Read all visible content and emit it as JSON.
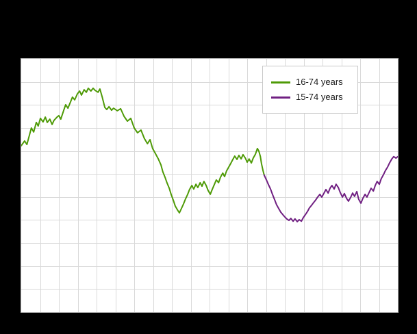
{
  "window": {
    "background": "#000000"
  },
  "chart_data": {
    "type": "line",
    "title": "",
    "plot_background": "#ffffff",
    "grid": {
      "visible": true,
      "columns": 20,
      "rows": 11,
      "color": "#d9d9d9",
      "border_color": "#b4b4b4"
    },
    "x_axis": {
      "tick_labels_visible": false
    },
    "y_axis": {
      "tick_labels_visible": false
    },
    "note": "No axis tick labels are visible in the image; point coordinates are normalized to the plot area (x: 0-1 left to right, y: 0-1 bottom to top).",
    "legend": {
      "position": "top-right",
      "items": [
        {
          "label": "16-74 years",
          "color": "#4e9a06"
        },
        {
          "label": "15-74 years",
          "color": "#702082"
        }
      ]
    },
    "series": [
      {
        "name": "16-74 years",
        "color": "#4e9a06",
        "points": [
          [
            0.0,
            0.657
          ],
          [
            0.009,
            0.676
          ],
          [
            0.015,
            0.662
          ],
          [
            0.022,
            0.7
          ],
          [
            0.027,
            0.727
          ],
          [
            0.033,
            0.711
          ],
          [
            0.04,
            0.749
          ],
          [
            0.045,
            0.735
          ],
          [
            0.051,
            0.765
          ],
          [
            0.058,
            0.751
          ],
          [
            0.064,
            0.77
          ],
          [
            0.069,
            0.749
          ],
          [
            0.076,
            0.762
          ],
          [
            0.082,
            0.741
          ],
          [
            0.087,
            0.757
          ],
          [
            0.095,
            0.77
          ],
          [
            0.1,
            0.776
          ],
          [
            0.105,
            0.762
          ],
          [
            0.113,
            0.797
          ],
          [
            0.118,
            0.819
          ],
          [
            0.124,
            0.805
          ],
          [
            0.131,
            0.83
          ],
          [
            0.136,
            0.849
          ],
          [
            0.142,
            0.838
          ],
          [
            0.149,
            0.862
          ],
          [
            0.155,
            0.873
          ],
          [
            0.16,
            0.857
          ],
          [
            0.167,
            0.878
          ],
          [
            0.173,
            0.868
          ],
          [
            0.178,
            0.884
          ],
          [
            0.185,
            0.873
          ],
          [
            0.191,
            0.884
          ],
          [
            0.196,
            0.876
          ],
          [
            0.204,
            0.868
          ],
          [
            0.209,
            0.881
          ],
          [
            0.215,
            0.849
          ],
          [
            0.222,
            0.808
          ],
          [
            0.227,
            0.8
          ],
          [
            0.233,
            0.811
          ],
          [
            0.24,
            0.797
          ],
          [
            0.245,
            0.805
          ],
          [
            0.255,
            0.795
          ],
          [
            0.264,
            0.803
          ],
          [
            0.273,
            0.773
          ],
          [
            0.282,
            0.754
          ],
          [
            0.291,
            0.765
          ],
          [
            0.3,
            0.727
          ],
          [
            0.309,
            0.708
          ],
          [
            0.318,
            0.719
          ],
          [
            0.327,
            0.686
          ],
          [
            0.335,
            0.665
          ],
          [
            0.342,
            0.681
          ],
          [
            0.349,
            0.646
          ],
          [
            0.356,
            0.627
          ],
          [
            0.364,
            0.605
          ],
          [
            0.371,
            0.581
          ],
          [
            0.376,
            0.554
          ],
          [
            0.382,
            0.532
          ],
          [
            0.387,
            0.511
          ],
          [
            0.393,
            0.489
          ],
          [
            0.398,
            0.465
          ],
          [
            0.404,
            0.441
          ],
          [
            0.409,
            0.419
          ],
          [
            0.415,
            0.403
          ],
          [
            0.42,
            0.392
          ],
          [
            0.425,
            0.408
          ],
          [
            0.431,
            0.427
          ],
          [
            0.436,
            0.446
          ],
          [
            0.442,
            0.465
          ],
          [
            0.447,
            0.484
          ],
          [
            0.453,
            0.5
          ],
          [
            0.458,
            0.486
          ],
          [
            0.464,
            0.505
          ],
          [
            0.469,
            0.492
          ],
          [
            0.475,
            0.511
          ],
          [
            0.48,
            0.497
          ],
          [
            0.485,
            0.516
          ],
          [
            0.491,
            0.5
          ],
          [
            0.496,
            0.481
          ],
          [
            0.502,
            0.465
          ],
          [
            0.507,
            0.484
          ],
          [
            0.513,
            0.505
          ],
          [
            0.518,
            0.522
          ],
          [
            0.524,
            0.511
          ],
          [
            0.529,
            0.532
          ],
          [
            0.535,
            0.549
          ],
          [
            0.54,
            0.535
          ],
          [
            0.545,
            0.557
          ],
          [
            0.551,
            0.573
          ],
          [
            0.556,
            0.586
          ],
          [
            0.562,
            0.603
          ],
          [
            0.567,
            0.616
          ],
          [
            0.573,
            0.603
          ],
          [
            0.578,
            0.619
          ],
          [
            0.584,
            0.605
          ],
          [
            0.589,
            0.622
          ],
          [
            0.595,
            0.608
          ],
          [
            0.6,
            0.592
          ],
          [
            0.605,
            0.605
          ],
          [
            0.611,
            0.589
          ],
          [
            0.616,
            0.608
          ],
          [
            0.622,
            0.624
          ],
          [
            0.627,
            0.646
          ],
          [
            0.631,
            0.635
          ],
          [
            0.635,
            0.614
          ],
          [
            0.638,
            0.586
          ],
          [
            0.642,
            0.559
          ],
          [
            0.645,
            0.541
          ]
        ]
      },
      {
        "name": "15-74 years",
        "color": "#702082",
        "points": [
          [
            0.645,
            0.541
          ],
          [
            0.651,
            0.522
          ],
          [
            0.656,
            0.505
          ],
          [
            0.662,
            0.486
          ],
          [
            0.667,
            0.465
          ],
          [
            0.673,
            0.443
          ],
          [
            0.678,
            0.424
          ],
          [
            0.684,
            0.408
          ],
          [
            0.689,
            0.395
          ],
          [
            0.695,
            0.384
          ],
          [
            0.7,
            0.376
          ],
          [
            0.705,
            0.368
          ],
          [
            0.711,
            0.362
          ],
          [
            0.716,
            0.37
          ],
          [
            0.722,
            0.359
          ],
          [
            0.727,
            0.368
          ],
          [
            0.733,
            0.357
          ],
          [
            0.738,
            0.365
          ],
          [
            0.744,
            0.359
          ],
          [
            0.749,
            0.373
          ],
          [
            0.755,
            0.386
          ],
          [
            0.76,
            0.397
          ],
          [
            0.765,
            0.411
          ],
          [
            0.771,
            0.422
          ],
          [
            0.776,
            0.432
          ],
          [
            0.782,
            0.443
          ],
          [
            0.787,
            0.454
          ],
          [
            0.793,
            0.465
          ],
          [
            0.798,
            0.454
          ],
          [
            0.804,
            0.47
          ],
          [
            0.809,
            0.484
          ],
          [
            0.815,
            0.47
          ],
          [
            0.82,
            0.489
          ],
          [
            0.825,
            0.5
          ],
          [
            0.831,
            0.486
          ],
          [
            0.836,
            0.505
          ],
          [
            0.842,
            0.492
          ],
          [
            0.847,
            0.473
          ],
          [
            0.853,
            0.454
          ],
          [
            0.858,
            0.468
          ],
          [
            0.864,
            0.449
          ],
          [
            0.869,
            0.438
          ],
          [
            0.875,
            0.454
          ],
          [
            0.88,
            0.47
          ],
          [
            0.885,
            0.457
          ],
          [
            0.891,
            0.476
          ],
          [
            0.896,
            0.446
          ],
          [
            0.902,
            0.43
          ],
          [
            0.907,
            0.449
          ],
          [
            0.913,
            0.465
          ],
          [
            0.918,
            0.454
          ],
          [
            0.924,
            0.473
          ],
          [
            0.929,
            0.489
          ],
          [
            0.935,
            0.478
          ],
          [
            0.94,
            0.5
          ],
          [
            0.945,
            0.516
          ],
          [
            0.951,
            0.505
          ],
          [
            0.956,
            0.527
          ],
          [
            0.962,
            0.543
          ],
          [
            0.967,
            0.559
          ],
          [
            0.973,
            0.573
          ],
          [
            0.978,
            0.589
          ],
          [
            0.984,
            0.605
          ],
          [
            0.989,
            0.614
          ],
          [
            0.995,
            0.608
          ],
          [
            1.0,
            0.614
          ]
        ]
      }
    ]
  }
}
